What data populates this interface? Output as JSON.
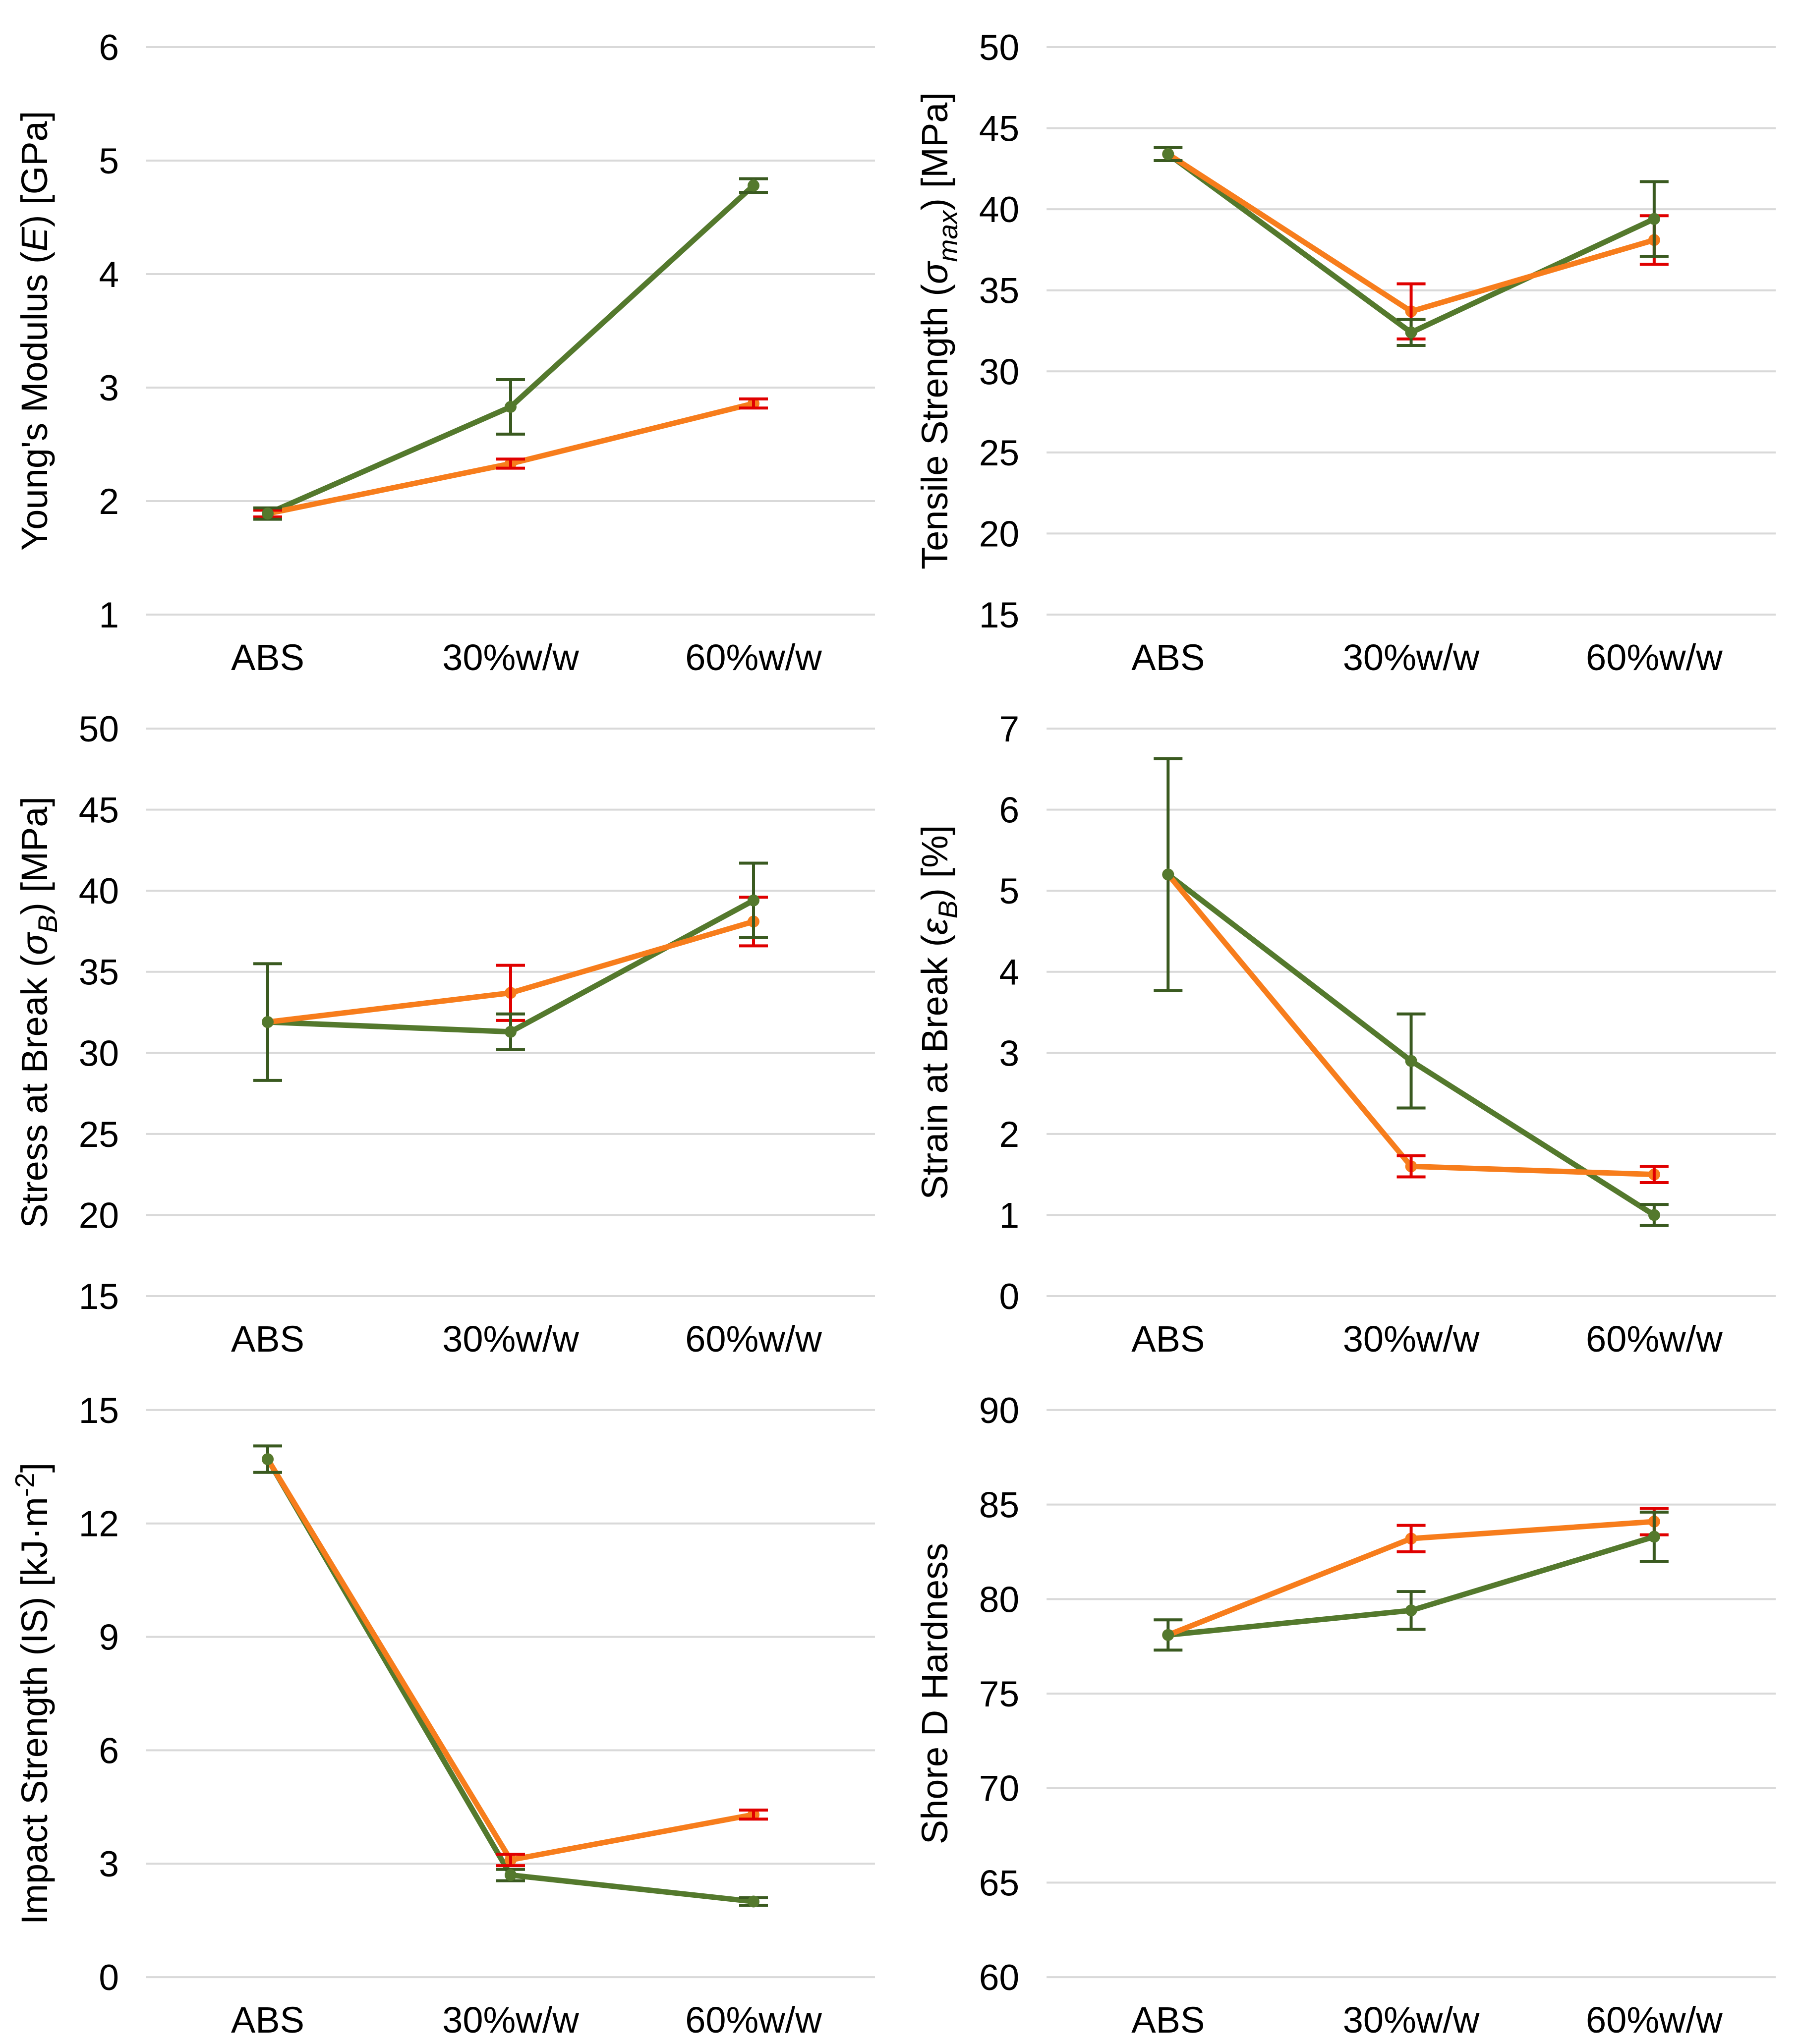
{
  "figure": {
    "background": "#FFFFFF",
    "grid_columns": 2,
    "grid_rows": 3,
    "legend": "none"
  },
  "colors": {
    "green_line": "#54792D",
    "green_error": "#3A5A20",
    "orange_line": "#F77D1C",
    "orange_error": "#E00000",
    "gridline": "#D9D9D9",
    "text": "#000000"
  },
  "categories": [
    "ABS",
    "30%w/w",
    "60%w/w"
  ],
  "chart_data": [
    {
      "id": "youngs-modulus",
      "type": "line",
      "title": "",
      "ylabel": "Young's Modulus (E) [GPa]",
      "ylabel_parts": [
        {
          "text": "Young's Modulus ("
        },
        {
          "text": "E",
          "italic": true
        },
        {
          "text": ") [GPa]"
        }
      ],
      "xlabel": "",
      "categories": [
        "ABS",
        "30%w/w",
        "60%w/w"
      ],
      "ylim": [
        1,
        6
      ],
      "yticks": [
        1,
        2,
        3,
        4,
        5,
        6
      ],
      "grid": true,
      "legend": "none",
      "series": [
        {
          "name": "green",
          "color": "green",
          "values": [
            1.89,
            2.83,
            4.78
          ],
          "errors": [
            0.05,
            0.24,
            0.06
          ]
        },
        {
          "name": "orange",
          "color": "orange",
          "values": [
            1.89,
            2.33,
            2.86
          ],
          "errors": [
            0.03,
            0.04,
            0.04
          ]
        }
      ]
    },
    {
      "id": "tensile-strength",
      "type": "line",
      "title": "",
      "ylabel": "Tensile Strength (σmax) [MPa]",
      "ylabel_parts": [
        {
          "text": "Tensile Strength ("
        },
        {
          "text": "σ",
          "italic": true
        },
        {
          "text": "max",
          "italic": true,
          "script": "sub"
        },
        {
          "text": ") [MPa]"
        }
      ],
      "xlabel": "",
      "categories": [
        "ABS",
        "30%w/w",
        "60%w/w"
      ],
      "ylim": [
        15,
        50
      ],
      "yticks": [
        15,
        20,
        25,
        30,
        35,
        40,
        45,
        50
      ],
      "grid": true,
      "legend": "none",
      "series": [
        {
          "name": "green",
          "color": "green",
          "values": [
            43.4,
            32.4,
            39.4
          ],
          "errors": [
            0.4,
            0.8,
            2.3
          ]
        },
        {
          "name": "orange",
          "color": "orange",
          "values": [
            43.4,
            33.7,
            38.1
          ],
          "errors": [
            0,
            1.7,
            1.5
          ]
        }
      ]
    },
    {
      "id": "stress-at-break",
      "type": "line",
      "title": "",
      "ylabel": "Stress at Break (σB) [MPa]",
      "ylabel_parts": [
        {
          "text": "Stress at Break ("
        },
        {
          "text": "σ",
          "italic": true
        },
        {
          "text": "B",
          "italic": true,
          "script": "sub"
        },
        {
          "text": ") [MPa]"
        }
      ],
      "xlabel": "",
      "categories": [
        "ABS",
        "30%w/w",
        "60%w/w"
      ],
      "ylim": [
        15,
        50
      ],
      "yticks": [
        15,
        20,
        25,
        30,
        35,
        40,
        45,
        50
      ],
      "grid": true,
      "legend": "none",
      "series": [
        {
          "name": "green",
          "color": "green",
          "values": [
            31.9,
            31.3,
            39.4
          ],
          "errors": [
            3.6,
            1.1,
            2.3
          ]
        },
        {
          "name": "orange",
          "color": "orange",
          "values": [
            31.9,
            33.7,
            38.1
          ],
          "errors": [
            0,
            1.7,
            1.5
          ]
        }
      ]
    },
    {
      "id": "strain-at-break",
      "type": "line",
      "title": "",
      "ylabel": "Strain at Break (εB) [%]",
      "ylabel_parts": [
        {
          "text": "Strain at Break ("
        },
        {
          "text": "ε",
          "italic": true
        },
        {
          "text": "B",
          "italic": true,
          "script": "sub"
        },
        {
          "text": ") [%]"
        }
      ],
      "xlabel": "",
      "categories": [
        "ABS",
        "30%w/w",
        "60%w/w"
      ],
      "ylim": [
        0,
        7
      ],
      "yticks": [
        0,
        1,
        2,
        3,
        4,
        5,
        6,
        7
      ],
      "grid": true,
      "legend": "none",
      "series": [
        {
          "name": "green",
          "color": "green",
          "values": [
            5.2,
            2.9,
            1.0
          ],
          "errors": [
            1.43,
            0.58,
            0.13
          ]
        },
        {
          "name": "orange",
          "color": "orange",
          "values": [
            5.2,
            1.6,
            1.5
          ],
          "errors": [
            0,
            0.13,
            0.1
          ]
        }
      ]
    },
    {
      "id": "impact-strength",
      "type": "line",
      "title": "",
      "ylabel": "Impact Strength (IS) [kJ·m-2]",
      "ylabel_parts": [
        {
          "text": "Impact Strength (IS) [kJ·m"
        },
        {
          "text": "-2",
          "script": "sup"
        },
        {
          "text": "]"
        }
      ],
      "xlabel": "",
      "categories": [
        "ABS",
        "30%w/w",
        "60%w/w"
      ],
      "ylim": [
        0,
        15
      ],
      "yticks": [
        0,
        3,
        6,
        9,
        12,
        15
      ],
      "grid": true,
      "legend": "none",
      "series": [
        {
          "name": "green",
          "color": "green",
          "values": [
            13.7,
            2.7,
            2.0
          ],
          "errors": [
            0.35,
            0.15,
            0.1
          ]
        },
        {
          "name": "orange",
          "color": "orange",
          "values": [
            13.7,
            3.1,
            4.3
          ],
          "errors": [
            0,
            0.15,
            0.12
          ]
        }
      ]
    },
    {
      "id": "shore-d-hardness",
      "type": "line",
      "title": "",
      "ylabel": "Shore D Hardness",
      "ylabel_parts": [
        {
          "text": "Shore D Hardness"
        }
      ],
      "xlabel": "",
      "categories": [
        "ABS",
        "30%w/w",
        "60%w/w"
      ],
      "ylim": [
        60,
        90
      ],
      "yticks": [
        60,
        65,
        70,
        75,
        80,
        85,
        90
      ],
      "grid": true,
      "legend": "none",
      "series": [
        {
          "name": "green",
          "color": "green",
          "values": [
            78.1,
            79.4,
            83.3
          ],
          "errors": [
            0.8,
            1.0,
            1.3
          ]
        },
        {
          "name": "orange",
          "color": "orange",
          "values": [
            78.1,
            83.2,
            84.1
          ],
          "errors": [
            0,
            0.7,
            0.7
          ]
        }
      ]
    }
  ]
}
